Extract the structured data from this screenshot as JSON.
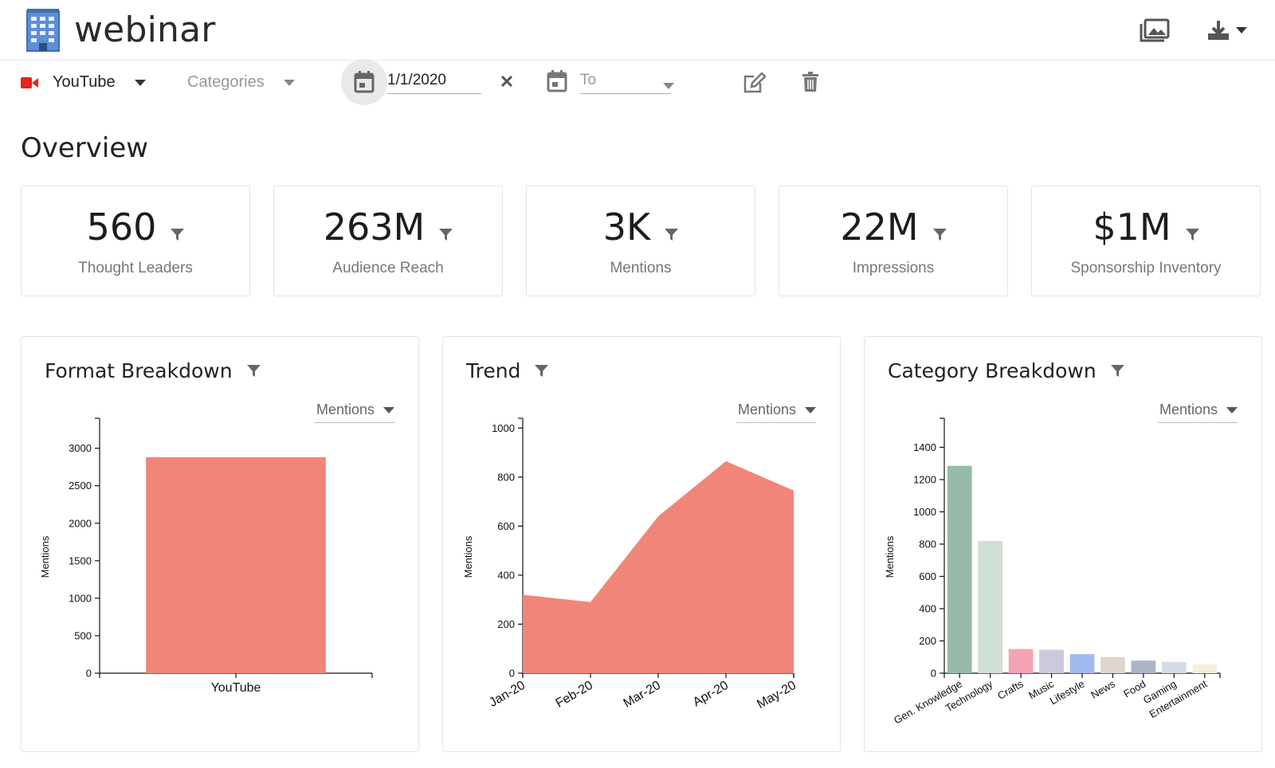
{
  "app": {
    "title": "webinar",
    "logo_icon": "building-icon"
  },
  "header_actions": [
    {
      "name": "gallery-icon"
    },
    {
      "name": "download-icon"
    }
  ],
  "filters": {
    "platform": "YouTube",
    "categories_placeholder": "Categories",
    "date_from": "1/1/2020",
    "date_to_placeholder": "To"
  },
  "overview": {
    "title": "Overview",
    "stats": [
      {
        "value": "560",
        "label": "Thought Leaders"
      },
      {
        "value": "263M",
        "label": "Audience Reach"
      },
      {
        "value": "3K",
        "label": "Mentions"
      },
      {
        "value": "22M",
        "label": "Impressions"
      },
      {
        "value": "$1M",
        "label": "Sponsorship Inventory"
      }
    ]
  },
  "charts": [
    {
      "title": "Format Breakdown",
      "metric": "Mentions"
    },
    {
      "title": "Trend",
      "metric": "Mentions"
    },
    {
      "title": "Category Breakdown",
      "metric": "Mentions"
    }
  ],
  "colors": {
    "accent": "#f28579",
    "youtube": "#e8231d",
    "category_bars": [
      "#96bba8",
      "#cfdfd4",
      "#f3a3b2",
      "#cbc9dc",
      "#a3baf0",
      "#ded6cc",
      "#aab6c6",
      "#d3dce6",
      "#f2f0dc"
    ]
  },
  "chart_data": [
    {
      "type": "bar",
      "title": "Format Breakdown",
      "categories": [
        "YouTube"
      ],
      "values": [
        2880
      ],
      "xlabel": "",
      "ylabel": "Mentions",
      "ylim": [
        0,
        3400
      ],
      "yticks": [
        0,
        500,
        1000,
        1500,
        2000,
        2500,
        3000
      ]
    },
    {
      "type": "area",
      "title": "Trend",
      "categories": [
        "Jan-20",
        "Feb-20",
        "Mar-20",
        "Apr-20",
        "May-20"
      ],
      "values": [
        320,
        290,
        640,
        865,
        745
      ],
      "xlabel": "",
      "ylabel": "Mentions",
      "ylim": [
        0,
        1040
      ],
      "yticks": [
        0,
        200,
        400,
        600,
        800,
        1000
      ]
    },
    {
      "type": "bar",
      "title": "Category Breakdown",
      "categories": [
        "Gen. Knowledge",
        "Technology",
        "Crafts",
        "Music",
        "Lifestyle",
        "News",
        "Food",
        "Gaming",
        "Entertainment"
      ],
      "values": [
        1285,
        820,
        150,
        145,
        118,
        100,
        78,
        70,
        55
      ],
      "xlabel": "",
      "ylabel": "Mentions",
      "ylim": [
        0,
        1580
      ],
      "yticks": [
        0,
        200,
        400,
        600,
        800,
        1000,
        1200,
        1400
      ]
    }
  ]
}
